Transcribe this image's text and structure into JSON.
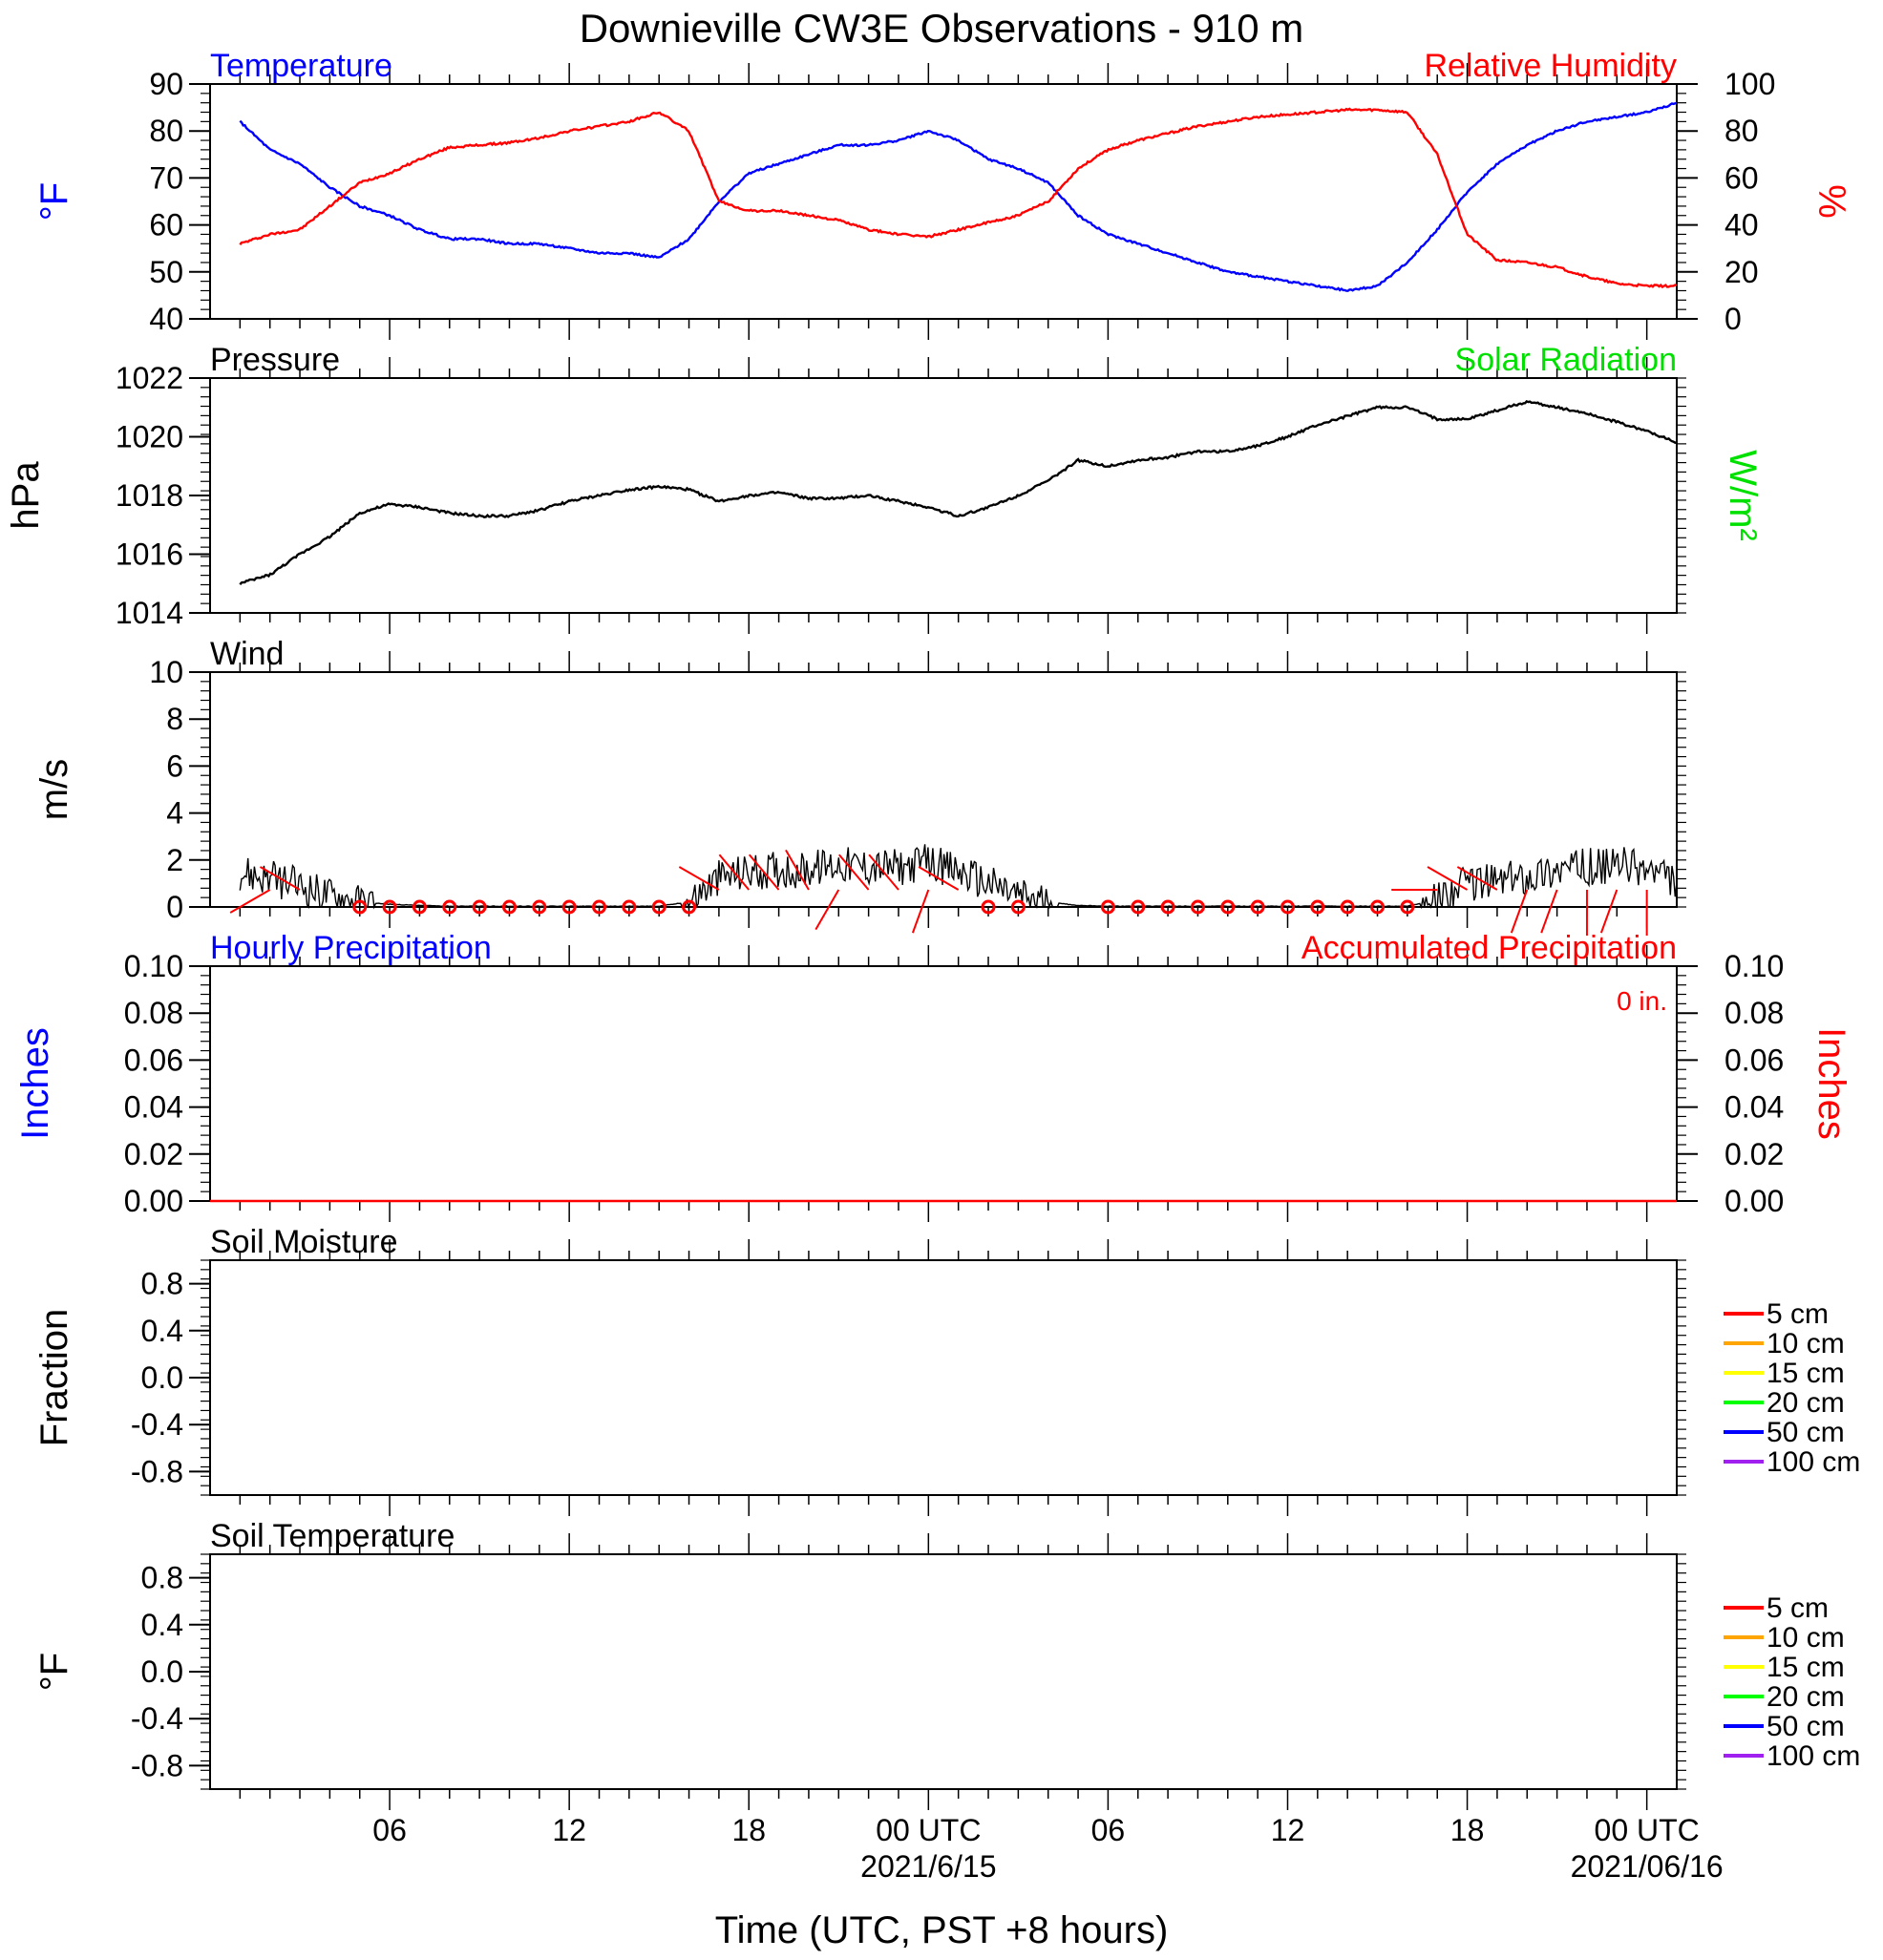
{
  "title": "Downieville CW3E Observations - 910 m",
  "xlabel": "Time (UTC, PST +8 hours)",
  "x_ticks": [
    {
      "hour": 6,
      "label": "06",
      "date": ""
    },
    {
      "hour": 12,
      "label": "12",
      "date": ""
    },
    {
      "hour": 18,
      "label": "18",
      "date": ""
    },
    {
      "hour": 24,
      "label": "00 UTC",
      "date": "2021/6/15"
    },
    {
      "hour": 30,
      "label": "06",
      "date": ""
    },
    {
      "hour": 36,
      "label": "12",
      "date": ""
    },
    {
      "hour": 42,
      "label": "18",
      "date": ""
    },
    {
      "hour": 48,
      "label": "00 UTC",
      "date": "2021/06/16"
    }
  ],
  "colors": {
    "temperature": "#0000ff",
    "humidity": "#ff0000",
    "solar": "#00e000",
    "black": "#000000"
  },
  "chart_data": [
    {
      "id": "temp_rh",
      "type": "line",
      "title_left": "Temperature",
      "title_right": "Relative Humidity",
      "ylabel_left": "°F",
      "ylabel_right": "%",
      "ylim_left": [
        40,
        90
      ],
      "ylim_right": [
        0,
        100
      ],
      "yticks_left": [
        "40",
        "50",
        "60",
        "70",
        "80",
        "90"
      ],
      "yticks_right": [
        "0",
        "20",
        "40",
        "60",
        "80",
        "100"
      ],
      "series": [
        {
          "name": "Temperature",
          "axis": "left",
          "x": [
            1,
            2,
            3,
            4,
            5,
            6,
            7,
            8,
            9,
            10,
            11,
            12,
            13,
            14,
            15,
            16,
            17,
            18,
            19,
            20,
            21,
            22,
            23,
            24,
            25,
            26,
            27,
            28,
            29,
            30,
            31,
            32,
            33,
            34,
            35,
            36,
            37,
            38,
            39,
            40,
            41,
            42,
            43,
            44,
            45,
            46,
            47,
            48,
            49
          ],
          "y": [
            82,
            76,
            73,
            68,
            64,
            62,
            59,
            57,
            57,
            56,
            56,
            55,
            54,
            54,
            53,
            57,
            65,
            71,
            73,
            75,
            77,
            77,
            78,
            80,
            78,
            74,
            72,
            69,
            62,
            58,
            56,
            54,
            52,
            50,
            49,
            48,
            47,
            46,
            47,
            52,
            59,
            67,
            73,
            77,
            80,
            82,
            83,
            84,
            86
          ]
        },
        {
          "name": "Relative Humidity",
          "axis": "right",
          "x": [
            1,
            2,
            3,
            4,
            5,
            6,
            7,
            8,
            9,
            10,
            11,
            12,
            13,
            14,
            15,
            16,
            17,
            18,
            19,
            20,
            21,
            22,
            23,
            24,
            25,
            26,
            27,
            28,
            29,
            30,
            31,
            32,
            33,
            34,
            35,
            36,
            37,
            38,
            39,
            40,
            41,
            42,
            43,
            44,
            45,
            46,
            47,
            48,
            49
          ],
          "y": [
            32,
            36,
            38,
            48,
            58,
            62,
            68,
            73,
            74,
            75,
            77,
            80,
            82,
            84,
            88,
            80,
            50,
            46,
            46,
            44,
            42,
            38,
            36,
            35,
            38,
            41,
            44,
            50,
            64,
            72,
            76,
            79,
            82,
            84,
            86,
            87,
            88,
            89,
            89,
            88,
            70,
            36,
            25,
            24,
            22,
            18,
            15,
            14,
            14
          ]
        }
      ]
    },
    {
      "id": "pressure",
      "type": "line",
      "title_left": "Pressure",
      "title_right": "Solar Radiation",
      "ylabel_left": "hPa",
      "ylabel_right": "W/m²",
      "ylim_left": [
        1014,
        1022
      ],
      "yticks_left": [
        "1014",
        "1016",
        "1018",
        "1020",
        "1022"
      ],
      "series": [
        {
          "name": "Pressure",
          "axis": "left",
          "x": [
            1,
            2,
            3,
            4,
            5,
            6,
            7,
            8,
            9,
            10,
            11,
            12,
            13,
            14,
            15,
            16,
            17,
            18,
            19,
            20,
            21,
            22,
            23,
            24,
            25,
            26,
            27,
            28,
            29,
            30,
            31,
            32,
            33,
            34,
            35,
            36,
            37,
            38,
            39,
            40,
            41,
            42,
            43,
            44,
            45,
            46,
            47,
            48,
            49
          ],
          "y": [
            1015.0,
            1015.3,
            1016.0,
            1016.6,
            1017.4,
            1017.7,
            1017.6,
            1017.4,
            1017.3,
            1017.3,
            1017.5,
            1017.8,
            1018.0,
            1018.2,
            1018.3,
            1018.2,
            1017.8,
            1018.0,
            1018.1,
            1017.9,
            1017.9,
            1018.0,
            1017.8,
            1017.6,
            1017.3,
            1017.6,
            1018.0,
            1018.5,
            1019.2,
            1019.0,
            1019.2,
            1019.3,
            1019.5,
            1019.5,
            1019.7,
            1020.0,
            1020.4,
            1020.7,
            1021.0,
            1021.0,
            1020.6,
            1020.6,
            1020.9,
            1021.2,
            1021.0,
            1020.8,
            1020.5,
            1020.2,
            1019.8
          ]
        }
      ]
    },
    {
      "id": "wind",
      "type": "line",
      "title_left": "Wind",
      "ylabel_left": "m/s",
      "ylim_left": [
        0,
        10
      ],
      "yticks_left": [
        "0",
        "2",
        "4",
        "6",
        "8",
        "10"
      ],
      "series": [
        {
          "name": "Wind",
          "axis": "left",
          "x": [
            1,
            2,
            3,
            4,
            5,
            6,
            7,
            8,
            9,
            10,
            11,
            12,
            13,
            14,
            15,
            16,
            17,
            18,
            19,
            20,
            21,
            22,
            23,
            24,
            25,
            26,
            27,
            28,
            29,
            30,
            31,
            32,
            33,
            34,
            35,
            36,
            37,
            38,
            39,
            40,
            41,
            42,
            43,
            44,
            45,
            46,
            47,
            48,
            49
          ],
          "y": [
            1.5,
            1.2,
            0.9,
            0.5,
            0.2,
            0.1,
            0.05,
            0.02,
            0.02,
            0.02,
            0.02,
            0.02,
            0.02,
            0.02,
            0.02,
            0.2,
            1.2,
            1.5,
            1.6,
            1.6,
            1.8,
            1.7,
            1.7,
            1.9,
            1.5,
            1.0,
            0.5,
            0.2,
            0.05,
            0.02,
            0.02,
            0.02,
            0.02,
            0.02,
            0.02,
            0.02,
            0.02,
            0.02,
            0.02,
            0.02,
            0.3,
            1.0,
            1.1,
            1.3,
            1.6,
            1.7,
            1.8,
            1.6,
            1.0
          ]
        }
      ],
      "barbs": [
        {
          "hour": 2,
          "speed": 1.0,
          "dir": 240
        },
        {
          "hour": 3,
          "speed": 1.1,
          "dir": 300
        },
        {
          "hour": 5,
          "speed": 0.0,
          "dir": 0
        },
        {
          "hour": 6,
          "speed": 0.0,
          "dir": 0
        },
        {
          "hour": 7,
          "speed": 0.0,
          "dir": 0
        },
        {
          "hour": 8,
          "speed": 0.0,
          "dir": 0
        },
        {
          "hour": 9,
          "speed": 0.0,
          "dir": 0
        },
        {
          "hour": 10,
          "speed": 0.0,
          "dir": 0
        },
        {
          "hour": 11,
          "speed": 0.0,
          "dir": 0
        },
        {
          "hour": 12,
          "speed": 0.0,
          "dir": 0
        },
        {
          "hour": 13,
          "speed": 0.0,
          "dir": 0
        },
        {
          "hour": 14,
          "speed": 0.0,
          "dir": 0
        },
        {
          "hour": 15,
          "speed": 0.0,
          "dir": 0
        },
        {
          "hour": 16,
          "speed": 0.0,
          "dir": 0
        },
        {
          "hour": 17,
          "speed": 1.2,
          "dir": 300
        },
        {
          "hour": 18,
          "speed": 1.4,
          "dir": 320
        },
        {
          "hour": 19,
          "speed": 1.5,
          "dir": 320
        },
        {
          "hour": 20,
          "speed": 1.6,
          "dir": 330
        },
        {
          "hour": 21,
          "speed": 1.7,
          "dir": 210
        },
        {
          "hour": 22,
          "speed": 1.8,
          "dir": 320
        },
        {
          "hour": 23,
          "speed": 1.7,
          "dir": 320
        },
        {
          "hour": 24,
          "speed": 1.9,
          "dir": 200
        },
        {
          "hour": 25,
          "speed": 1.0,
          "dir": 300
        },
        {
          "hour": 26,
          "speed": 0.0,
          "dir": 0
        },
        {
          "hour": 27,
          "speed": 0.0,
          "dir": 0
        },
        {
          "hour": 30,
          "speed": 0.0,
          "dir": 0
        },
        {
          "hour": 31,
          "speed": 0.0,
          "dir": 0
        },
        {
          "hour": 32,
          "speed": 0.0,
          "dir": 0
        },
        {
          "hour": 33,
          "speed": 0.0,
          "dir": 0
        },
        {
          "hour": 34,
          "speed": 0.0,
          "dir": 0
        },
        {
          "hour": 35,
          "speed": 0.0,
          "dir": 0
        },
        {
          "hour": 36,
          "speed": 0.0,
          "dir": 0
        },
        {
          "hour": 37,
          "speed": 0.0,
          "dir": 0
        },
        {
          "hour": 38,
          "speed": 0.0,
          "dir": 0
        },
        {
          "hour": 39,
          "speed": 0.0,
          "dir": 0
        },
        {
          "hour": 40,
          "speed": 0.0,
          "dir": 0
        },
        {
          "hour": 41,
          "speed": 0.3,
          "dir": 270
        },
        {
          "hour": 42,
          "speed": 1.0,
          "dir": 300
        },
        {
          "hour": 43,
          "speed": 1.1,
          "dir": 300
        },
        {
          "hour": 44,
          "speed": 1.3,
          "dir": 200
        },
        {
          "hour": 45,
          "speed": 1.6,
          "dir": 200
        },
        {
          "hour": 46,
          "speed": 1.7,
          "dir": 180
        },
        {
          "hour": 47,
          "speed": 1.8,
          "dir": 200
        },
        {
          "hour": 48,
          "speed": 1.6,
          "dir": 180
        }
      ]
    },
    {
      "id": "precip",
      "type": "line",
      "title_left": "Hourly Precipitation",
      "title_right": "Accumulated Precipitation",
      "annotation": "0 in.",
      "ylabel_left": "Inches",
      "ylabel_right": "Inches",
      "ylim_left": [
        0,
        0.1
      ],
      "ylim_right": [
        0,
        0.1
      ],
      "yticks_left": [
        "0.00",
        "0.02",
        "0.04",
        "0.06",
        "0.08",
        "0.10"
      ],
      "yticks_right": [
        "0.00",
        "0.02",
        "0.04",
        "0.06",
        "0.08",
        "0.10"
      ],
      "series": [
        {
          "name": "Accumulated Precipitation",
          "axis": "right",
          "x": [
            0,
            49
          ],
          "y": [
            0,
            0
          ]
        }
      ]
    },
    {
      "id": "soil_moisture",
      "type": "line",
      "title_left": "Soil Moisture",
      "ylabel_left": "Fraction",
      "ylim_left": [
        -1,
        1
      ],
      "yticks_left": [
        "-0.8",
        "-0.4",
        "0.0",
        "0.4",
        "0.8"
      ],
      "ytick_values": [
        -0.8,
        -0.4,
        0,
        0.4,
        0.8
      ],
      "legend": [
        {
          "label": "5 cm",
          "color": "#ff0000"
        },
        {
          "label": "10 cm",
          "color": "#ffa500"
        },
        {
          "label": "15 cm",
          "color": "#ffff00"
        },
        {
          "label": "20 cm",
          "color": "#00ff00"
        },
        {
          "label": "50 cm",
          "color": "#0000ff"
        },
        {
          "label": "100 cm",
          "color": "#a020f0"
        }
      ],
      "series": []
    },
    {
      "id": "soil_temperature",
      "type": "line",
      "title_left": "Soil Temperature",
      "ylabel_left": "°F",
      "ylim_left": [
        -1,
        1
      ],
      "yticks_left": [
        "-0.8",
        "-0.4",
        "0.0",
        "0.4",
        "0.8"
      ],
      "ytick_values": [
        -0.8,
        -0.4,
        0,
        0.4,
        0.8
      ],
      "legend": [
        {
          "label": "5 cm",
          "color": "#ff0000"
        },
        {
          "label": "10 cm",
          "color": "#ffa500"
        },
        {
          "label": "15 cm",
          "color": "#ffff00"
        },
        {
          "label": "20 cm",
          "color": "#00ff00"
        },
        {
          "label": "50 cm",
          "color": "#0000ff"
        },
        {
          "label": "100 cm",
          "color": "#a020f0"
        }
      ],
      "series": []
    }
  ]
}
